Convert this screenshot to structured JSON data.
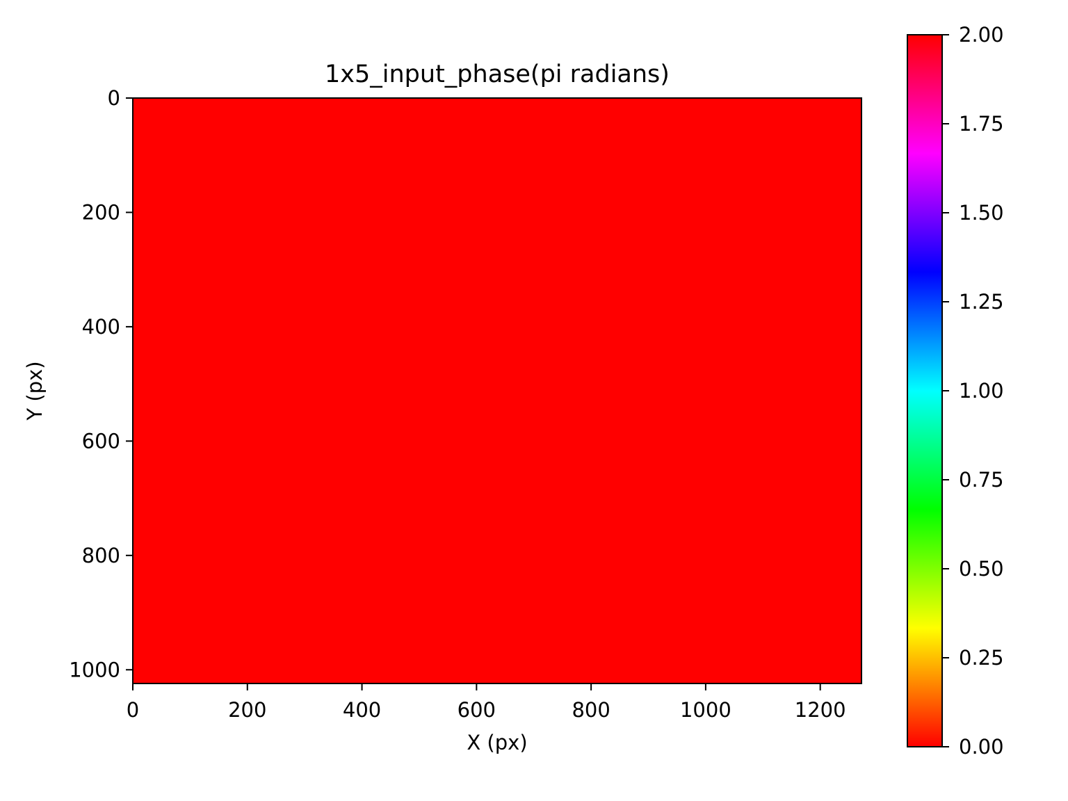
{
  "chart_data": {
    "type": "heatmap",
    "title": "1x5_input_phase(pi radians)",
    "xlabel": "X (px)",
    "ylabel": "Y (px)",
    "xlim": [
      0,
      1272
    ],
    "ylim": [
      1024,
      0
    ],
    "x_ticks": [
      "0",
      "200",
      "400",
      "600",
      "800",
      "1000",
      "1200"
    ],
    "y_ticks": [
      "0",
      "200",
      "400",
      "600",
      "800",
      "1000"
    ],
    "x_tick_values": [
      0,
      200,
      400,
      600,
      800,
      1000,
      1200
    ],
    "y_tick_values": [
      0,
      200,
      400,
      600,
      800,
      1000
    ],
    "grid": false,
    "values": [
      [
        0
      ]
    ],
    "colormap": "hsv",
    "fill_color": "#ff0000",
    "colorbar": {
      "range": [
        0,
        2
      ],
      "ticks": [
        "0.00",
        "0.25",
        "0.50",
        "0.75",
        "1.00",
        "1.25",
        "1.50",
        "1.75",
        "2.00"
      ],
      "tick_values": [
        0,
        0.25,
        0.5,
        0.75,
        1.0,
        1.25,
        1.5,
        1.75,
        2.0
      ],
      "colors": [
        "#ff0000",
        "#ffff00",
        "#00ff00",
        "#00ffff",
        "#0000ff",
        "#ff00ff",
        "#ff0000"
      ]
    }
  }
}
